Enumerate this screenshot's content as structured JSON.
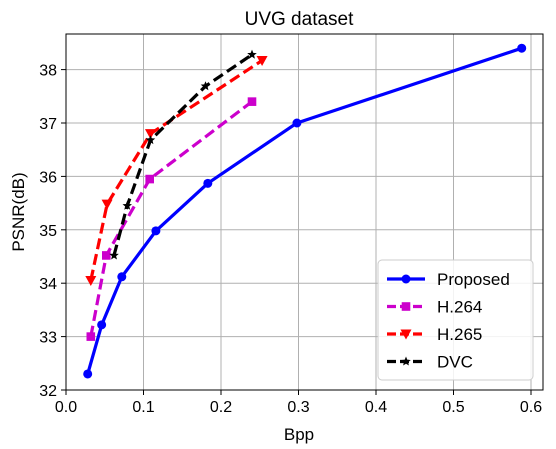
{
  "chart_data": {
    "type": "line",
    "title": "UVG dataset",
    "xlabel": "Bpp",
    "ylabel": "PSNR(dB)",
    "xlim": [
      0.0,
      0.6
    ],
    "ylim": [
      32,
      38.6
    ],
    "xticks": [
      "0.0",
      "0.1",
      "0.2",
      "0.3",
      "0.4",
      "0.5",
      "0.6"
    ],
    "yticks": [
      "32",
      "33",
      "34",
      "35",
      "36",
      "37",
      "38"
    ],
    "grid": true,
    "legend_position": "lower-right",
    "series": [
      {
        "name": "Proposed",
        "color": "#0000ff",
        "linestyle": "solid",
        "marker": "circle",
        "x": [
          0.028,
          0.046,
          0.072,
          0.116,
          0.183,
          0.298,
          0.588
        ],
        "y": [
          32.3,
          33.22,
          34.12,
          34.98,
          35.87,
          37.0,
          38.4
        ]
      },
      {
        "name": "H.264",
        "color": "#cc00cc",
        "linestyle": "dashed",
        "marker": "square",
        "x": [
          0.032,
          0.052,
          0.108,
          0.24
        ],
        "y": [
          33.0,
          34.52,
          35.95,
          37.4
        ]
      },
      {
        "name": "H.265",
        "color": "#ff0000",
        "linestyle": "dashed",
        "marker": "triangle-down",
        "x": [
          0.032,
          0.053,
          0.109,
          0.253
        ],
        "y": [
          34.05,
          35.48,
          36.8,
          38.17
        ]
      },
      {
        "name": "DVC",
        "color": "#000000",
        "linestyle": "dashed",
        "marker": "star",
        "x": [
          0.062,
          0.079,
          0.109,
          0.18,
          0.24
        ],
        "y": [
          34.52,
          35.45,
          36.68,
          37.69,
          38.28
        ]
      }
    ]
  }
}
